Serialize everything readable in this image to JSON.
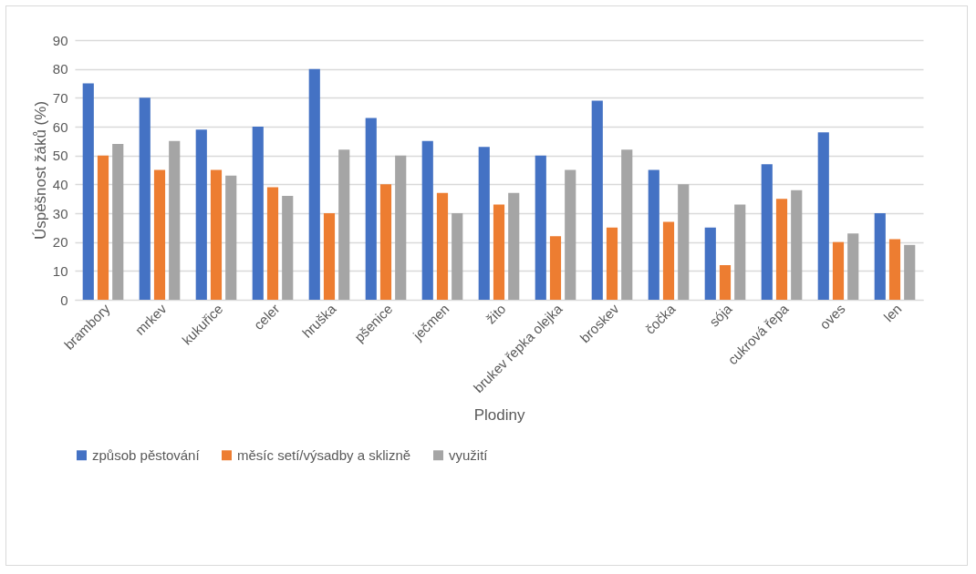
{
  "chart_data": {
    "type": "bar",
    "xlabel": "Plodiny",
    "ylabel": "Úspěšnost žáků (%)",
    "categories": [
      "brambory",
      "mrkev",
      "kukuřice",
      "celer",
      "hruška",
      "pšenice",
      "ječmen",
      "žito",
      "brukev řepka olejka",
      "broskev",
      "čočka",
      "sója",
      "cukrová řepa",
      "oves",
      "len"
    ],
    "series": [
      {
        "name": "způsob pěstování",
        "color": "#4472c4",
        "values": [
          75,
          70,
          59,
          60,
          80,
          63,
          55,
          53,
          50,
          69,
          45,
          25,
          47,
          58,
          30
        ]
      },
      {
        "name": "měsíc setí/výsadby a sklizně",
        "color": "#ed7d31",
        "values": [
          50,
          45,
          45,
          39,
          30,
          40,
          37,
          33,
          22,
          25,
          27,
          12,
          35,
          20,
          21
        ]
      },
      {
        "name": "využití",
        "color": "#a5a5a5",
        "values": [
          54,
          55,
          43,
          36,
          52,
          50,
          30,
          37,
          45,
          52,
          40,
          33,
          38,
          23,
          19
        ]
      }
    ],
    "ylim": [
      0,
      90
    ],
    "yticks": [
      0,
      10,
      20,
      30,
      40,
      50,
      60,
      70,
      80,
      90
    ],
    "grid": "y",
    "legend": "bottom"
  }
}
